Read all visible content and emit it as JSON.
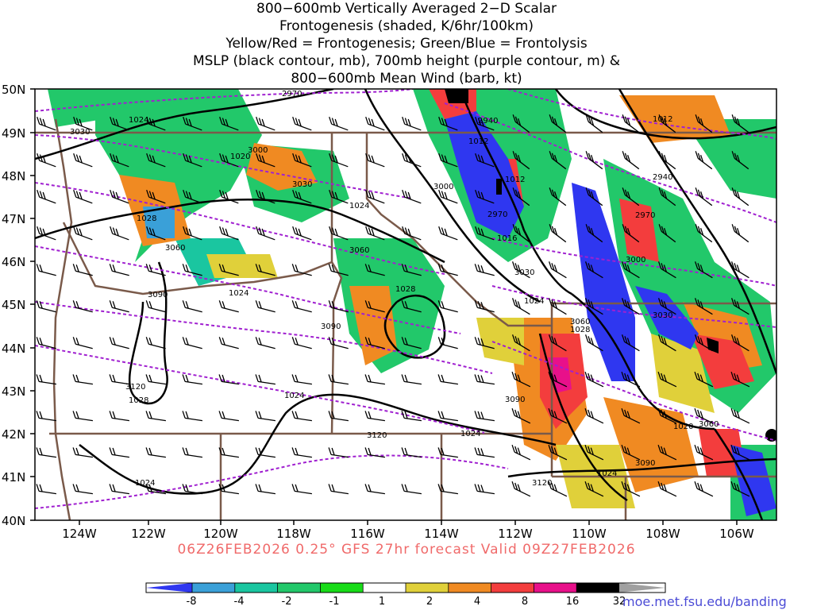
{
  "title_lines": [
    "800−600mb Vertically Averaged 2−D Scalar",
    "Frontogenesis (shaded, K/6hr/100km)",
    "Yellow/Red = Frontogenesis;  Green/Blue = Frontolysis",
    "MSLP (black contour, mb), 700mb height (purple contour, m) &",
    "800−600mb Mean Wind (barb, kt)"
  ],
  "footer": "06Z26FEB2026 0.25° GFS 27hr forecast Valid 09Z27FEB2026",
  "credit": "moe.met.fsu.edu/banding",
  "lat_labels": [
    "50N",
    "49N",
    "48N",
    "47N",
    "46N",
    "45N",
    "44N",
    "43N",
    "42N",
    "41N",
    "40N"
  ],
  "lon_labels": [
    "124W",
    "122W",
    "120W",
    "118W",
    "116W",
    "114W",
    "112W",
    "110W",
    "108W",
    "106W"
  ],
  "colorbar": {
    "labels": [
      "-8",
      "-4",
      "-2",
      "-1",
      "1",
      "2",
      "4",
      "8",
      "16",
      "32"
    ],
    "colors": [
      "#2f37f0",
      "#3aa0d8",
      "#1ac6a0",
      "#22c86a",
      "#18dc18",
      "#ffffff",
      "#e0d03a",
      "#f08a22",
      "#f33d3d",
      "#e8108a",
      "#000000",
      "#a0a0a0"
    ]
  },
  "colors": {
    "mslp": "#000000",
    "height": "#a020d0",
    "border": "#7a5a4a",
    "footer": "#f06a6a",
    "credit": "#4b4bd6"
  },
  "mslp_labels": [
    "1024",
    "1028",
    "1020",
    "1024",
    "1028",
    "1024",
    "1024",
    "1028",
    "1024",
    "1012",
    "1016",
    "1012",
    "1024",
    "1012",
    "1020",
    "1024",
    "1028",
    "1024"
  ],
  "height_labels": [
    "2970",
    "3030",
    "3000",
    "3030",
    "3060",
    "3090",
    "3120",
    "2940",
    "3000",
    "2970",
    "3030",
    "3060",
    "3090",
    "3120",
    "2970",
    "2940",
    "3000",
    "3030",
    "3060",
    "3090",
    "3120",
    "3060",
    "3090"
  ]
}
